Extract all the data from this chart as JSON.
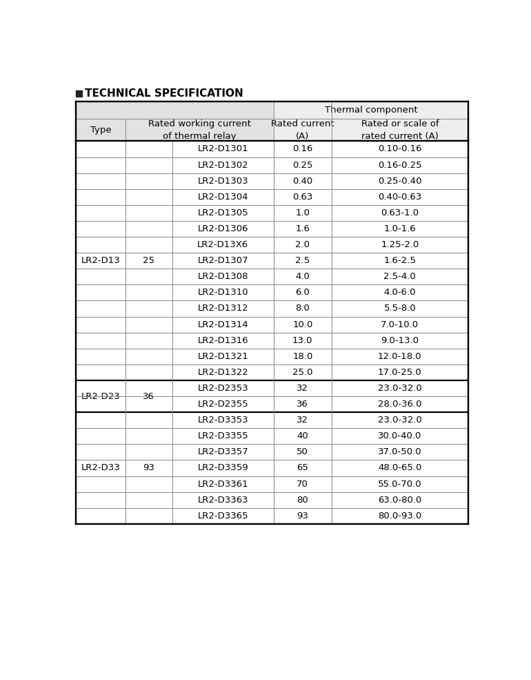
{
  "title": "TECHNICAL SPECIFICATION",
  "thermal_component_header": "Thermal component",
  "col_type_header": "Type",
  "col_rated_working_header": "Rated working current\nof thermal relay",
  "col_rated_current_header": "Rated current\n(A)",
  "col_scale_header": "Rated or scale of\nrated current (A)",
  "rows": [
    {
      "model": "LR2-D1301",
      "rated_current": "0.16",
      "scale": "0.10-0.16"
    },
    {
      "model": "LR2-D1302",
      "rated_current": "0.25",
      "scale": "0.16-0.25"
    },
    {
      "model": "LR2-D1303",
      "rated_current": "0.40",
      "scale": "0.25-0.40"
    },
    {
      "model": "LR2-D1304",
      "rated_current": "0.63",
      "scale": "0.40-0.63"
    },
    {
      "model": "LR2-D1305",
      "rated_current": "1.0",
      "scale": "0.63-1.0"
    },
    {
      "model": "LR2-D1306",
      "rated_current": "1.6",
      "scale": "1.0-1.6"
    },
    {
      "model": "LR2-D13X6",
      "rated_current": "2.0",
      "scale": "1.25-2.0"
    },
    {
      "model": "LR2-D1307",
      "rated_current": "2.5",
      "scale": "1.6-2.5"
    },
    {
      "model": "LR2-D1308",
      "rated_current": "4.0",
      "scale": "2.5-4.0"
    },
    {
      "model": "LR2-D1310",
      "rated_current": "6.0",
      "scale": "4.0-6.0"
    },
    {
      "model": "LR2-D1312",
      "rated_current": "8.0",
      "scale": "5.5-8.0"
    },
    {
      "model": "LR2-D1314",
      "rated_current": "10.0",
      "scale": "7.0-10.0"
    },
    {
      "model": "LR2-D1316",
      "rated_current": "13.0",
      "scale": "9.0-13.0"
    },
    {
      "model": "LR2-D1321",
      "rated_current": "18.0",
      "scale": "12.0-18.0"
    },
    {
      "model": "LR2-D1322",
      "rated_current": "25.0",
      "scale": "17.0-25.0"
    },
    {
      "model": "LR2-D2353",
      "rated_current": "32",
      "scale": "23.0-32.0"
    },
    {
      "model": "LR2-D2355",
      "rated_current": "36",
      "scale": "28.0-36.0"
    },
    {
      "model": "LR2-D3353",
      "rated_current": "32",
      "scale": "23.0-32.0"
    },
    {
      "model": "LR2-D3355",
      "rated_current": "40",
      "scale": "30.0-40.0"
    },
    {
      "model": "LR2-D3357",
      "rated_current": "50",
      "scale": "37.0-50.0"
    },
    {
      "model": "LR2-D3359",
      "rated_current": "65",
      "scale": "48.0-65.0"
    },
    {
      "model": "LR2-D3361",
      "rated_current": "70",
      "scale": "55.0-70.0"
    },
    {
      "model": "LR2-D3363",
      "rated_current": "80",
      "scale": "63.0-80.0"
    },
    {
      "model": "LR2-D3365",
      "rated_current": "93",
      "scale": "80.0-93.0"
    }
  ],
  "groups": [
    {
      "type": "LR2-D13",
      "rated_working": "25",
      "start": 0,
      "end": 14
    },
    {
      "type": "LR2-D23",
      "rated_working": "36",
      "start": 15,
      "end": 16
    },
    {
      "type": "LR2-D33",
      "rated_working": "93",
      "start": 17,
      "end": 23
    }
  ],
  "bg_header_left": "#e2e2e2",
  "bg_header_right": "#eeeeee",
  "bg_white": "#ffffff",
  "text_color": "#000000",
  "border_thin_color": "#888888",
  "border_thick_color": "#000000",
  "title_square_color": "#222222",
  "title_fontsize": 11,
  "header_fontsize": 9.5,
  "data_fontsize": 9.5
}
